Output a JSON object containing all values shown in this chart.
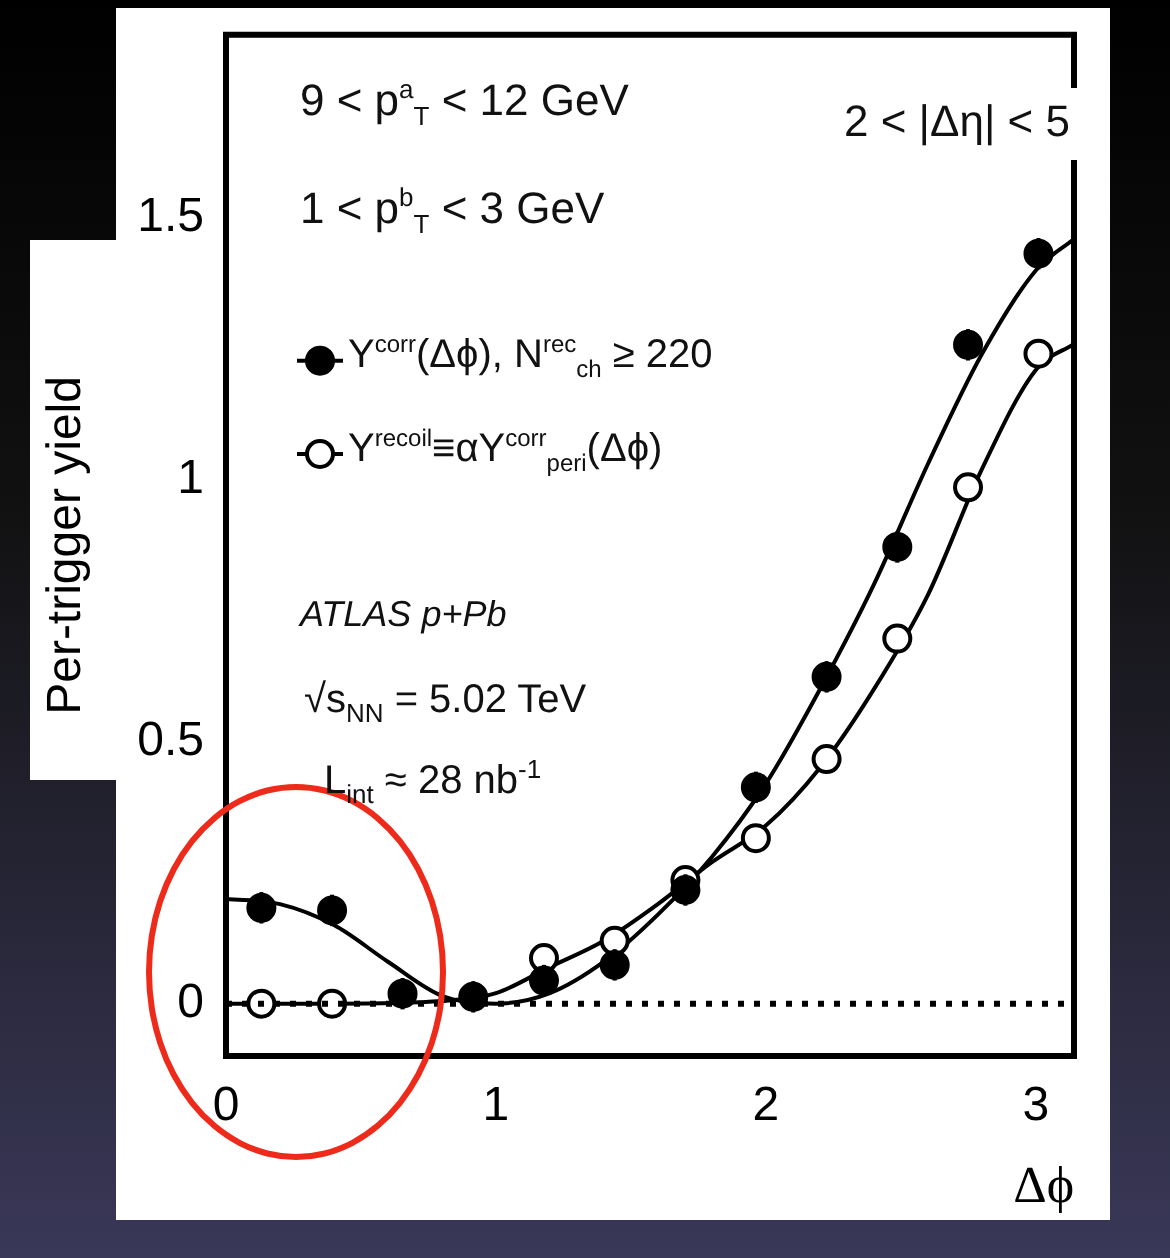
{
  "chart_data": {
    "type": "scatter",
    "xlabel": "Δϕ",
    "ylabel": "Per-trigger yield",
    "xlim": [
      0,
      3.1416
    ],
    "xticks": [
      0,
      1,
      2,
      3
    ],
    "ylim": [
      -0.1,
      1.85
    ],
    "yticks": [
      0,
      0.5,
      1,
      1.5
    ],
    "marker": "circle",
    "legend": "top left",
    "series": [
      {
        "name": "Y$^{corr}$(Δϕ), N$^{rec}$$_{ch}$ ≥ 220",
        "color": "#000000",
        "x": [
          0.131,
          0.393,
          0.654,
          0.916,
          1.178,
          1.44,
          1.702,
          1.963,
          2.225,
          2.487,
          2.749,
          3.01
        ],
        "values": [
          0.183,
          0.178,
          0.019,
          0.013,
          0.044,
          0.074,
          0.217,
          0.413,
          0.624,
          0.872,
          1.258,
          1.432
        ],
        "errors": [
          0.03,
          0.03,
          0.03,
          0.03,
          0.03,
          0.03,
          0.03,
          0.03,
          0.03,
          0.03,
          0.03,
          0.03
        ]
      },
      {
        "name": "Y$^{recoil}$≡αY$^{corr}$$_{peri}$(Δϕ)",
        "color": "#ffffff",
        "x": [
          0.131,
          0.393,
          0.654,
          0.916,
          1.178,
          1.44,
          1.702,
          1.963,
          2.225,
          2.487,
          2.749,
          3.01
        ],
        "values": [
          0,
          0,
          null,
          null,
          0.087,
          0.12,
          0.236,
          0.316,
          0.467,
          0.697,
          0.986,
          1.241
        ]
      },
      {
        "type": "line",
        "color": "#000000",
        "marker": "none",
        "x": [
          0,
          0.2,
          0.4,
          0.6,
          0.8,
          1.0,
          1.2,
          1.4,
          1.6,
          1.8,
          2.0,
          2.2,
          2.4,
          2.6,
          2.8,
          3.0,
          3.1416
        ],
        "values": [
          0.2,
          0.19,
          0.15,
          0.08,
          0.015,
          0,
          0.02,
          0.08,
          0.17,
          0.28,
          0.42,
          0.6,
          0.8,
          1.03,
          1.24,
          1.4,
          1.46
        ]
      },
      {
        "type": "line",
        "color": "#000000",
        "marker": "none",
        "x": [
          0,
          0.4,
          0.8,
          1.0,
          1.2,
          1.4,
          1.6,
          1.8,
          2.0,
          2.2,
          2.4,
          2.6,
          2.8,
          3.0,
          3.1416
        ],
        "values": [
          0,
          0,
          0.005,
          0.02,
          0.07,
          0.12,
          0.19,
          0.27,
          0.34,
          0.45,
          0.6,
          0.78,
          1.02,
          1.21,
          1.26
        ]
      }
    ],
    "ref_lines": [
      {
        "axis": "y",
        "value": 0,
        "line_style": "dotted",
        "color": "#000000"
      }
    ],
    "annotations": [
      "9 < p$^{a}$$_{T}$ < 12 GeV",
      "2 < |Δη| < 5",
      "1 < p$^{b}$$_{T}$ < 3 GeV",
      "ATLAS p+Pb",
      "√s$_{NN}$ = 5.02 TeV",
      "L$_{int}$ ≈ 28 nb$^{-1}$"
    ]
  }
}
